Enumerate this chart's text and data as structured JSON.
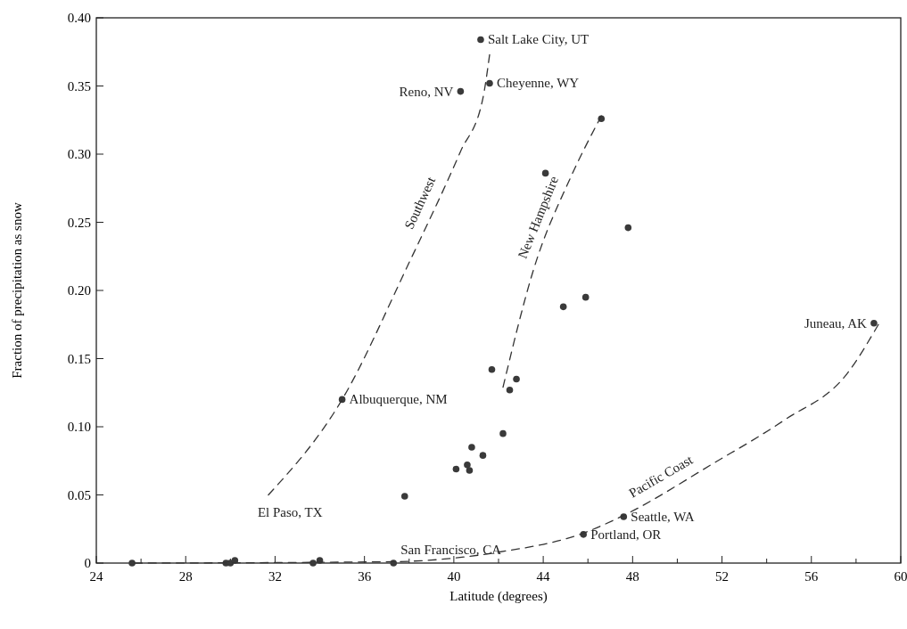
{
  "chart_data": {
    "type": "scatter",
    "xlabel": "Latitude (degrees)",
    "ylabel": "Fraction of precipitation as snow",
    "xlim": [
      24,
      60
    ],
    "ylim": [
      0,
      0.4
    ],
    "xticks": [
      24,
      {
        "value": 26,
        "label": null
      },
      28,
      {
        "value": 30,
        "label": null
      },
      32,
      {
        "value": 34,
        "label": null
      },
      36,
      {
        "value": 38,
        "label": null
      },
      40,
      {
        "value": 42,
        "label": null
      },
      44,
      {
        "value": 46,
        "label": null
      },
      48,
      {
        "value": 50,
        "label": null
      },
      52,
      {
        "value": 54,
        "label": null
      },
      56,
      {
        "value": 58,
        "label": null
      },
      60
    ],
    "yticks": [
      0,
      0.05,
      {
        "value": 0.1,
        "label": "0.10"
      },
      0.15,
      {
        "value": 0.2,
        "label": "0.20"
      },
      0.25,
      {
        "value": 0.3,
        "label": "0.30"
      },
      0.35,
      {
        "value": 0.4,
        "label": "0.40"
      }
    ],
    "grid": false,
    "legend": false,
    "series": [
      {
        "color": "#3a3a3a",
        "marker": "circle",
        "x": [
          25.6,
          29.8,
          30.0,
          30.2,
          33.7,
          34.0,
          37.3,
          37.8,
          35.0,
          40.1,
          40.6,
          40.7,
          40.8,
          41.3,
          42.2,
          42.5,
          42.8,
          41.7,
          44.9,
          45.9,
          47.8,
          44.1,
          46.6,
          41.6,
          40.3,
          41.2,
          58.8,
          47.6,
          45.8
        ],
        "values": [
          0,
          0,
          0,
          0.002,
          0,
          0.002,
          0,
          0.049,
          0.12,
          0.069,
          0.072,
          0.068,
          0.085,
          0.079,
          0.095,
          0.127,
          0.135,
          0.142,
          0.188,
          0.195,
          0.246,
          0.286,
          0.326,
          0.352,
          0.346,
          0.384,
          0.176,
          0.034,
          0.021
        ]
      },
      {
        "type": "line",
        "name": "Southwest",
        "color": "#333333",
        "line_style": "dashed",
        "x": [
          31.7,
          35.0,
          37.9,
          40.3,
          41.3,
          41.6
        ],
        "values": [
          0.05,
          0.12,
          0.217,
          0.302,
          0.341,
          0.373
        ]
      },
      {
        "type": "line",
        "name": "New Hampshire",
        "color": "#333333",
        "line_style": "dashed",
        "x": [
          42.2,
          43.6,
          45.2,
          46.6
        ],
        "values": [
          0.129,
          0.217,
          0.282,
          0.328
        ]
      },
      {
        "type": "line",
        "name": "Pacific Coast",
        "color": "#333333",
        "line_style": "dashed",
        "x": [
          25.7,
          37.2,
          42.0,
          45.8,
          47.6,
          51.6,
          54.8,
          57.6,
          59.0
        ],
        "values": [
          0,
          0.001,
          0.008,
          0.022,
          0.035,
          0.073,
          0.105,
          0.139,
          0.175
        ]
      }
    ],
    "annotations": [
      {
        "text": "Salt Lake City, UT",
        "x": 41.2,
        "y": 0.384
      },
      {
        "text": "Cheyenne, WY",
        "x": 41.6,
        "y": 0.352
      },
      {
        "text": "Reno, NV",
        "x": 40.3,
        "y": 0.346
      },
      {
        "text": "Albuquerque, NM",
        "x": 35.0,
        "y": 0.12
      },
      {
        "text": "El Paso, TX",
        "x": 31.7,
        "y": 0.05
      },
      {
        "text": "San Francisco, CA",
        "x": 37.3,
        "y": 0
      },
      {
        "text": "Portland, OR",
        "x": 45.8,
        "y": 0.021
      },
      {
        "text": "Seattle, WA",
        "x": 47.6,
        "y": 0.034
      },
      {
        "text": "Juneau, AK",
        "x": 58.8,
        "y": 0.176
      }
    ]
  }
}
